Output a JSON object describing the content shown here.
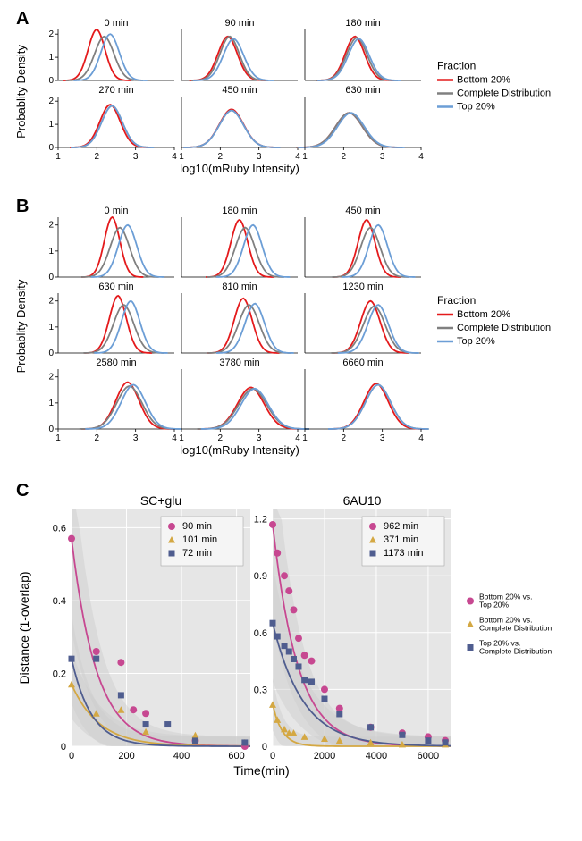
{
  "panelA": {
    "label": "A",
    "title": "",
    "ylabel": "Probablity Density",
    "xlabel": "log10(mRuby Intensity)",
    "xlim": [
      1,
      4
    ],
    "ylim": [
      0,
      2.2
    ],
    "xticks": [
      1,
      2,
      3,
      4
    ],
    "yticks": [
      0,
      1,
      2
    ],
    "legend_title": "Fraction",
    "legend_items": [
      {
        "label": "Bottom 20%",
        "color": "#e41a1c"
      },
      {
        "label": "Complete Distribution",
        "color": "#808080"
      },
      {
        "label": "Top 20%",
        "color": "#6c9ed6"
      }
    ],
    "subplots": [
      {
        "title": "0 min",
        "curves": [
          {
            "color": "#e41a1c",
            "peak_x": 2.0,
            "peak_y": 2.2,
            "width": 0.35
          },
          {
            "color": "#808080",
            "peak_x": 2.2,
            "peak_y": 1.9,
            "width": 0.4
          },
          {
            "color": "#6c9ed6",
            "peak_x": 2.35,
            "peak_y": 2.0,
            "width": 0.38
          }
        ]
      },
      {
        "title": "90 min",
        "curves": [
          {
            "color": "#e41a1c",
            "peak_x": 2.2,
            "peak_y": 1.9,
            "width": 0.4
          },
          {
            "color": "#808080",
            "peak_x": 2.25,
            "peak_y": 1.9,
            "width": 0.4
          },
          {
            "color": "#6c9ed6",
            "peak_x": 2.35,
            "peak_y": 1.8,
            "width": 0.42
          }
        ]
      },
      {
        "title": "180 min",
        "curves": [
          {
            "color": "#e41a1c",
            "peak_x": 2.3,
            "peak_y": 1.9,
            "width": 0.4
          },
          {
            "color": "#808080",
            "peak_x": 2.35,
            "peak_y": 1.85,
            "width": 0.42
          },
          {
            "color": "#6c9ed6",
            "peak_x": 2.4,
            "peak_y": 1.8,
            "width": 0.43
          }
        ]
      },
      {
        "title": "270 min",
        "curves": [
          {
            "color": "#e41a1c",
            "peak_x": 2.35,
            "peak_y": 1.85,
            "width": 0.42
          },
          {
            "color": "#808080",
            "peak_x": 2.4,
            "peak_y": 1.8,
            "width": 0.43
          },
          {
            "color": "#6c9ed6",
            "peak_x": 2.4,
            "peak_y": 1.8,
            "width": 0.43
          }
        ]
      },
      {
        "title": "450 min",
        "curves": [
          {
            "color": "#e41a1c",
            "peak_x": 2.3,
            "peak_y": 1.65,
            "width": 0.5
          },
          {
            "color": "#808080",
            "peak_x": 2.3,
            "peak_y": 1.6,
            "width": 0.5
          },
          {
            "color": "#6c9ed6",
            "peak_x": 2.3,
            "peak_y": 1.6,
            "width": 0.5
          }
        ]
      },
      {
        "title": "630 min",
        "curves": [
          {
            "color": "#e41a1c",
            "peak_x": 2.15,
            "peak_y": 1.5,
            "width": 0.55
          },
          {
            "color": "#808080",
            "peak_x": 2.15,
            "peak_y": 1.5,
            "width": 0.55
          },
          {
            "color": "#6c9ed6",
            "peak_x": 2.2,
            "peak_y": 1.5,
            "width": 0.55
          }
        ]
      }
    ]
  },
  "panelB": {
    "label": "B",
    "ylabel": "Probablity Density",
    "xlabel": "log10(mRuby Intensity)",
    "xlim": [
      1,
      4
    ],
    "ylim": [
      0,
      2.3
    ],
    "xticks": [
      1,
      2,
      3,
      4
    ],
    "yticks": [
      0,
      1,
      2
    ],
    "legend_title": "Fraction",
    "legend_items": [
      {
        "label": "Bottom 20%",
        "color": "#e41a1c"
      },
      {
        "label": "Complete Distribution",
        "color": "#808080"
      },
      {
        "label": "Top 20%",
        "color": "#6c9ed6"
      }
    ],
    "subplots": [
      {
        "title": "0 min",
        "curves": [
          {
            "color": "#e41a1c",
            "peak_x": 2.4,
            "peak_y": 2.3,
            "width": 0.32
          },
          {
            "color": "#808080",
            "peak_x": 2.6,
            "peak_y": 1.9,
            "width": 0.4
          },
          {
            "color": "#6c9ed6",
            "peak_x": 2.8,
            "peak_y": 2.0,
            "width": 0.38
          }
        ]
      },
      {
        "title": "180 min",
        "curves": [
          {
            "color": "#e41a1c",
            "peak_x": 2.5,
            "peak_y": 2.2,
            "width": 0.35
          },
          {
            "color": "#808080",
            "peak_x": 2.65,
            "peak_y": 1.9,
            "width": 0.4
          },
          {
            "color": "#6c9ed6",
            "peak_x": 2.85,
            "peak_y": 2.0,
            "width": 0.38
          }
        ]
      },
      {
        "title": "450 min",
        "curves": [
          {
            "color": "#e41a1c",
            "peak_x": 2.6,
            "peak_y": 2.2,
            "width": 0.35
          },
          {
            "color": "#808080",
            "peak_x": 2.7,
            "peak_y": 1.9,
            "width": 0.4
          },
          {
            "color": "#6c9ed6",
            "peak_x": 2.9,
            "peak_y": 2.0,
            "width": 0.38
          }
        ]
      },
      {
        "title": "630 min",
        "curves": [
          {
            "color": "#e41a1c",
            "peak_x": 2.55,
            "peak_y": 2.2,
            "width": 0.35
          },
          {
            "color": "#808080",
            "peak_x": 2.7,
            "peak_y": 1.85,
            "width": 0.42
          },
          {
            "color": "#6c9ed6",
            "peak_x": 2.88,
            "peak_y": 2.0,
            "width": 0.38
          }
        ]
      },
      {
        "title": "810 min",
        "curves": [
          {
            "color": "#e41a1c",
            "peak_x": 2.6,
            "peak_y": 2.1,
            "width": 0.37
          },
          {
            "color": "#808080",
            "peak_x": 2.75,
            "peak_y": 1.85,
            "width": 0.43
          },
          {
            "color": "#6c9ed6",
            "peak_x": 2.9,
            "peak_y": 1.9,
            "width": 0.4
          }
        ]
      },
      {
        "title": "1230 min",
        "curves": [
          {
            "color": "#e41a1c",
            "peak_x": 2.7,
            "peak_y": 2.0,
            "width": 0.4
          },
          {
            "color": "#808080",
            "peak_x": 2.8,
            "peak_y": 1.8,
            "width": 0.45
          },
          {
            "color": "#6c9ed6",
            "peak_x": 2.9,
            "peak_y": 1.85,
            "width": 0.42
          }
        ]
      },
      {
        "title": "2580 min",
        "curves": [
          {
            "color": "#e41a1c",
            "peak_x": 2.8,
            "peak_y": 1.8,
            "width": 0.48
          },
          {
            "color": "#808080",
            "peak_x": 2.85,
            "peak_y": 1.65,
            "width": 0.52
          },
          {
            "color": "#6c9ed6",
            "peak_x": 2.95,
            "peak_y": 1.7,
            "width": 0.5
          }
        ]
      },
      {
        "title": "3780 min",
        "curves": [
          {
            "color": "#e41a1c",
            "peak_x": 2.8,
            "peak_y": 1.6,
            "width": 0.55
          },
          {
            "color": "#808080",
            "peak_x": 2.85,
            "peak_y": 1.55,
            "width": 0.58
          },
          {
            "color": "#6c9ed6",
            "peak_x": 2.9,
            "peak_y": 1.55,
            "width": 0.56
          }
        ]
      },
      {
        "title": "6660 min",
        "curves": [
          {
            "color": "#e41a1c",
            "peak_x": 2.85,
            "peak_y": 1.75,
            "width": 0.5
          },
          {
            "color": "#808080",
            "peak_x": 2.9,
            "peak_y": 1.7,
            "width": 0.52
          },
          {
            "color": "#6c9ed6",
            "peak_x": 2.9,
            "peak_y": 1.7,
            "width": 0.52
          }
        ]
      }
    ]
  },
  "panelC": {
    "label": "C",
    "ylabel": "Distance (1-overlap)",
    "xlabel": "Time(min)",
    "subplots": [
      {
        "title": "SC+glu",
        "xlim": [
          0,
          650
        ],
        "ylim": [
          0,
          0.65
        ],
        "xticks": [
          0,
          200,
          400,
          600
        ],
        "yticks": [
          0,
          0.2,
          0.4,
          0.6
        ],
        "legend_items": [
          {
            "label": "90 min",
            "color": "#c74891",
            "marker": "circle"
          },
          {
            "label": "101 min",
            "color": "#d4a843",
            "marker": "triangle"
          },
          {
            "label": "72 min",
            "color": "#4f5d8f",
            "marker": "square"
          }
        ],
        "series": [
          {
            "color": "#c74891",
            "marker": "circle",
            "points": [
              [
                0,
                0.57
              ],
              [
                90,
                0.26
              ],
              [
                180,
                0.23
              ],
              [
                225,
                0.1
              ],
              [
                270,
                0.09
              ],
              [
                450,
                0.015
              ],
              [
                630,
                0.0
              ]
            ],
            "decay": 90
          },
          {
            "color": "#d4a843",
            "marker": "triangle",
            "points": [
              [
                0,
                0.17
              ],
              [
                90,
                0.09
              ],
              [
                180,
                0.1
              ],
              [
                270,
                0.04
              ],
              [
                450,
                0.03
              ],
              [
                630,
                0.01
              ]
            ],
            "decay": 101
          },
          {
            "color": "#4f5d8f",
            "marker": "square",
            "points": [
              [
                0,
                0.24
              ],
              [
                90,
                0.24
              ],
              [
                180,
                0.14
              ],
              [
                270,
                0.06
              ],
              [
                350,
                0.06
              ],
              [
                450,
                0.015
              ],
              [
                630,
                0.01
              ]
            ],
            "decay": 72
          }
        ]
      },
      {
        "title": "6AU10",
        "xlim": [
          0,
          6900
        ],
        "ylim": [
          0,
          1.25
        ],
        "xticks": [
          0,
          2000,
          4000,
          6000
        ],
        "yticks": [
          0,
          0.3,
          0.6,
          0.9,
          1.2
        ],
        "legend_items": [
          {
            "label": "962 min",
            "color": "#c74891",
            "marker": "circle"
          },
          {
            "label": "371 min",
            "color": "#d4a843",
            "marker": "triangle"
          },
          {
            "label": "1173 min",
            "color": "#4f5d8f",
            "marker": "square"
          }
        ],
        "series": [
          {
            "color": "#c74891",
            "marker": "circle",
            "points": [
              [
                0,
                1.17
              ],
              [
                180,
                1.02
              ],
              [
                450,
                0.9
              ],
              [
                630,
                0.82
              ],
              [
                810,
                0.72
              ],
              [
                1000,
                0.57
              ],
              [
                1230,
                0.48
              ],
              [
                1500,
                0.45
              ],
              [
                2000,
                0.3
              ],
              [
                2580,
                0.2
              ],
              [
                3780,
                0.1
              ],
              [
                5000,
                0.07
              ],
              [
                6000,
                0.05
              ],
              [
                6660,
                0.03
              ]
            ],
            "decay": 962
          },
          {
            "color": "#d4a843",
            "marker": "triangle",
            "points": [
              [
                0,
                0.22
              ],
              [
                180,
                0.14
              ],
              [
                450,
                0.09
              ],
              [
                630,
                0.07
              ],
              [
                810,
                0.07
              ],
              [
                1230,
                0.05
              ],
              [
                2000,
                0.04
              ],
              [
                2580,
                0.03
              ],
              [
                3780,
                0.02
              ],
              [
                5000,
                0.01
              ],
              [
                6660,
                0.01
              ]
            ],
            "decay": 371
          },
          {
            "color": "#4f5d8f",
            "marker": "square",
            "points": [
              [
                0,
                0.65
              ],
              [
                180,
                0.58
              ],
              [
                450,
                0.53
              ],
              [
                630,
                0.5
              ],
              [
                810,
                0.46
              ],
              [
                1000,
                0.42
              ],
              [
                1230,
                0.35
              ],
              [
                1500,
                0.34
              ],
              [
                2000,
                0.25
              ],
              [
                2580,
                0.17
              ],
              [
                3780,
                0.1
              ],
              [
                5000,
                0.06
              ],
              [
                6000,
                0.03
              ],
              [
                6660,
                0.02
              ]
            ],
            "decay": 1173
          }
        ]
      }
    ],
    "legend_right": [
      {
        "label": "Bottom 20% vs.\nTop 20%",
        "color": "#c74891",
        "marker": "circle"
      },
      {
        "label": "Bottom 20% vs.\nComplete Distribution",
        "color": "#d4a843",
        "marker": "triangle"
      },
      {
        "label": "Top 20% vs.\nComplete Distribution",
        "color": "#4f5d8f",
        "marker": "square"
      }
    ],
    "confidence_color": "#cccccc",
    "background_color": "#e6e6e6"
  }
}
